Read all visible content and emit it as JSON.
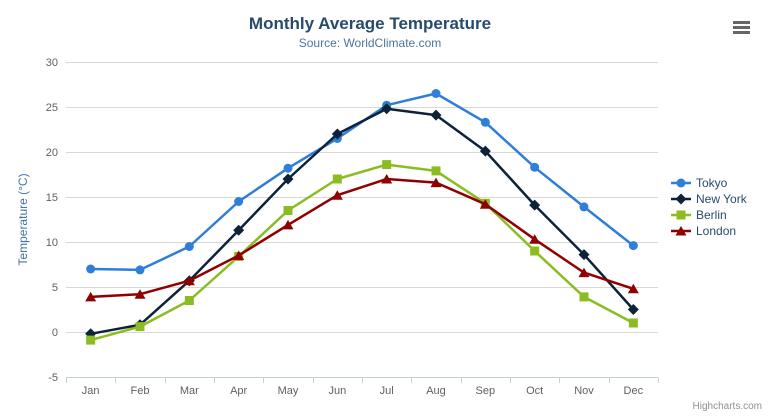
{
  "chart_data": {
    "type": "line",
    "title": "Monthly Average Temperature",
    "subtitle": "Source: WorldClimate.com",
    "xlabel": "",
    "ylabel": "Temperature (°C)",
    "categories": [
      "Jan",
      "Feb",
      "Mar",
      "Apr",
      "May",
      "Jun",
      "Jul",
      "Aug",
      "Sep",
      "Oct",
      "Nov",
      "Dec"
    ],
    "ylim": [
      -5,
      30
    ],
    "ytick_interval": 5,
    "yticks": [
      -5,
      0,
      5,
      10,
      15,
      20,
      25,
      30
    ],
    "grid": true,
    "legend_position": "right",
    "series": [
      {
        "name": "Tokyo",
        "color": "#2f7ed8",
        "marker": "circle",
        "values": [
          7.0,
          6.9,
          9.5,
          14.5,
          18.2,
          21.5,
          25.2,
          26.5,
          23.3,
          18.3,
          13.9,
          9.6
        ]
      },
      {
        "name": "New York",
        "color": "#0d233a",
        "marker": "diamond",
        "values": [
          -0.2,
          0.8,
          5.7,
          11.3,
          17.0,
          22.0,
          24.8,
          24.1,
          20.1,
          14.1,
          8.6,
          2.5
        ]
      },
      {
        "name": "Berlin",
        "color": "#8bbc21",
        "marker": "square",
        "values": [
          -0.9,
          0.6,
          3.5,
          8.4,
          13.5,
          17.0,
          18.6,
          17.9,
          14.3,
          9.0,
          3.9,
          1.0
        ]
      },
      {
        "name": "London",
        "color": "#910000",
        "marker": "triangle",
        "values": [
          3.9,
          4.2,
          5.7,
          8.5,
          11.9,
          15.2,
          17.0,
          16.6,
          14.2,
          10.3,
          6.6,
          4.8
        ]
      }
    ],
    "palette": {
      "title_color": "#274b6d",
      "subtitle_color": "#4d759e",
      "axis_label_color": "#606060",
      "yaxis_title_color": "#4572A7",
      "grid_color": "#d8d8d8",
      "axis_line_color": "#c0d0e0",
      "legend_text_color": "#274b6d",
      "credit_color": "#909090",
      "menu_icon_color": "#666666"
    },
    "credit": "Highcharts.com"
  },
  "toolbar": {
    "export_menu_icon": "hamburger-icon"
  }
}
